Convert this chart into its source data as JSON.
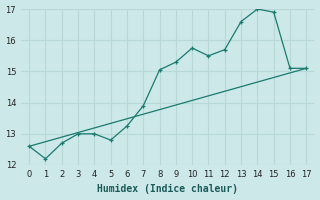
{
  "xlabel": "Humidex (Indice chaleur)",
  "background_color": "#cce8e8",
  "grid_color": "#b8d8d8",
  "line_color": "#1a7a6e",
  "xlim": [
    -0.5,
    17.5
  ],
  "ylim": [
    12,
    17
  ],
  "yticks": [
    12,
    13,
    14,
    15,
    16,
    17
  ],
  "xticks": [
    0,
    1,
    2,
    3,
    4,
    5,
    6,
    7,
    8,
    9,
    10,
    11,
    12,
    13,
    14,
    15,
    16,
    17
  ],
  "line1_x": [
    0,
    1,
    2,
    3,
    4,
    5,
    6,
    7,
    8,
    9,
    10,
    11,
    12,
    13,
    14,
    15,
    16,
    17
  ],
  "line1_y": [
    12.6,
    12.2,
    12.7,
    13.0,
    13.0,
    12.8,
    13.25,
    13.9,
    15.05,
    15.3,
    15.75,
    15.5,
    15.7,
    16.6,
    17.0,
    16.9,
    15.1,
    15.1
  ],
  "line1_marker_x": [
    0,
    1,
    2,
    3,
    4,
    5,
    6,
    7,
    8,
    9,
    10,
    11,
    12,
    13,
    14,
    15,
    16,
    17
  ],
  "line2_x": [
    0,
    17
  ],
  "line2_y": [
    12.6,
    15.1
  ]
}
